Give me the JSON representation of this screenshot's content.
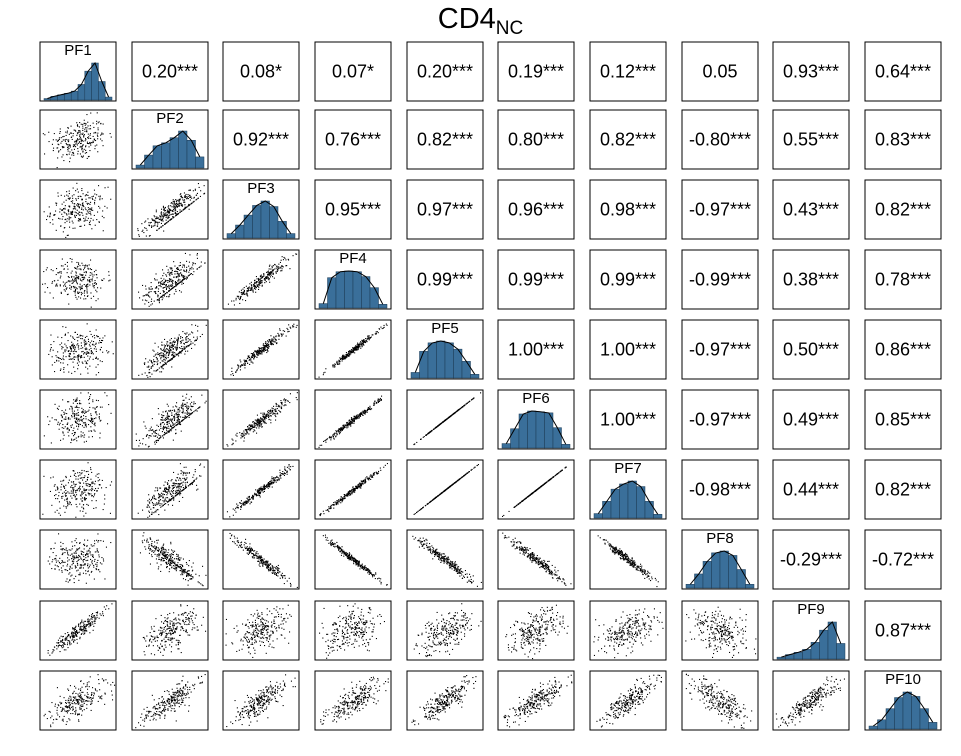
{
  "title_main": "CD4",
  "title_sub": "NC",
  "colors": {
    "histogram_fill": "#3a6f9a",
    "frame": "#000000",
    "points": "#000000"
  },
  "chart_data": {
    "type": "scatter-matrix",
    "variables": [
      "PF1",
      "PF2",
      "PF3",
      "PF4",
      "PF5",
      "PF6",
      "PF7",
      "PF8",
      "PF9",
      "PF10"
    ],
    "diagonal": "histogram",
    "lower": "scatter",
    "upper": "correlation",
    "correlations": [
      [
        "",
        "0.20***",
        "0.08*",
        "0.07*",
        "0.20***",
        "0.19***",
        "0.12***",
        "0.05",
        "0.93***",
        "0.64***"
      ],
      [
        "",
        "",
        "0.92***",
        "0.76***",
        "0.82***",
        "0.80***",
        "0.82***",
        "-0.80***",
        "0.55***",
        "0.83***"
      ],
      [
        "",
        "",
        "",
        "0.95***",
        "0.97***",
        "0.96***",
        "0.98***",
        "-0.97***",
        "0.43***",
        "0.82***"
      ],
      [
        "",
        "",
        "",
        "",
        "0.99***",
        "0.99***",
        "0.99***",
        "-0.99***",
        "0.38***",
        "0.78***"
      ],
      [
        "",
        "",
        "",
        "",
        "",
        "1.00***",
        "1.00***",
        "-0.97***",
        "0.50***",
        "0.86***"
      ],
      [
        "",
        "",
        "",
        "",
        "",
        "",
        "1.00***",
        "-0.97***",
        "0.49***",
        "0.85***"
      ],
      [
        "",
        "",
        "",
        "",
        "",
        "",
        "",
        "-0.98***",
        "0.44***",
        "0.82***"
      ],
      [
        "",
        "",
        "",
        "",
        "",
        "",
        "",
        "",
        "-0.29***",
        "-0.72***"
      ],
      [
        "",
        "",
        "",
        "",
        "",
        "",
        "",
        "",
        "",
        "0.87***"
      ],
      [
        "",
        "",
        "",
        "",
        "",
        "",
        "",
        "",
        "",
        ""
      ]
    ],
    "histograms": [
      [
        0.04,
        0.1,
        0.14,
        0.18,
        0.24,
        0.42,
        0.78,
        1.0,
        0.5,
        0.08
      ],
      [
        0.08,
        0.35,
        0.6,
        0.68,
        0.82,
        1.0,
        0.75,
        0.3
      ],
      [
        0.12,
        0.35,
        0.62,
        0.88,
        1.0,
        0.85,
        0.45,
        0.12
      ],
      [
        0.12,
        0.82,
        0.98,
        1.0,
        0.98,
        0.85,
        0.55,
        0.1
      ],
      [
        0.15,
        0.72,
        0.95,
        1.0,
        0.95,
        0.78,
        0.45,
        0.1
      ],
      [
        0.12,
        0.52,
        0.92,
        1.0,
        0.98,
        0.95,
        0.55,
        0.1
      ],
      [
        0.12,
        0.45,
        0.78,
        0.92,
        1.0,
        0.85,
        0.45,
        0.1
      ],
      [
        0.1,
        0.38,
        0.72,
        0.95,
        1.0,
        0.88,
        0.5,
        0.1
      ],
      [
        0.05,
        0.12,
        0.18,
        0.26,
        0.45,
        0.78,
        1.0,
        0.42
      ],
      [
        0.08,
        0.25,
        0.55,
        0.85,
        1.0,
        0.88,
        0.55,
        0.18
      ]
    ]
  }
}
